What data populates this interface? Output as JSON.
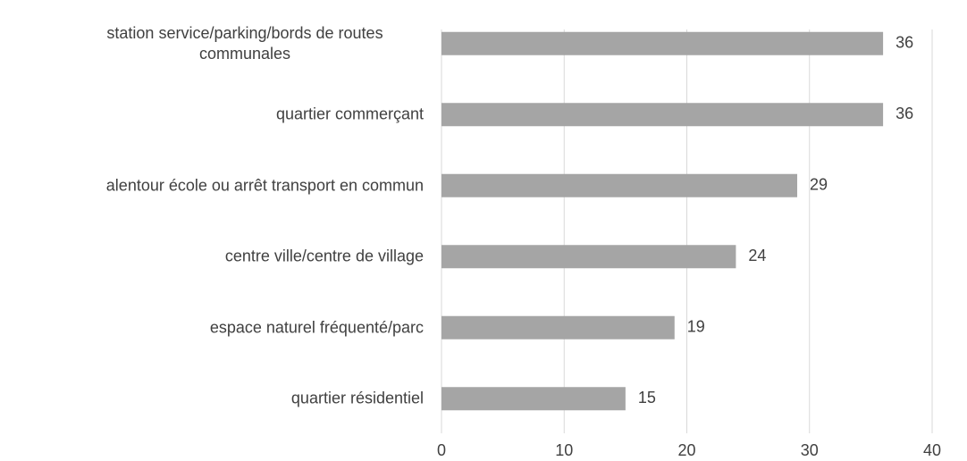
{
  "chart_data": {
    "type": "barh",
    "categories": [
      "station service/parking/bords de routes communales",
      "quartier commerçant",
      "alentour école ou arrêt transport en commun",
      "centre ville/centre de village",
      "espace naturel fréquenté/parc",
      "quartier résidentiel"
    ],
    "values": [
      36,
      36,
      29,
      24,
      19,
      15
    ],
    "color": "#a5a5a5",
    "xlim": [
      0,
      40
    ],
    "xticks": [
      0,
      10,
      20,
      30,
      40
    ],
    "grid": true
  }
}
